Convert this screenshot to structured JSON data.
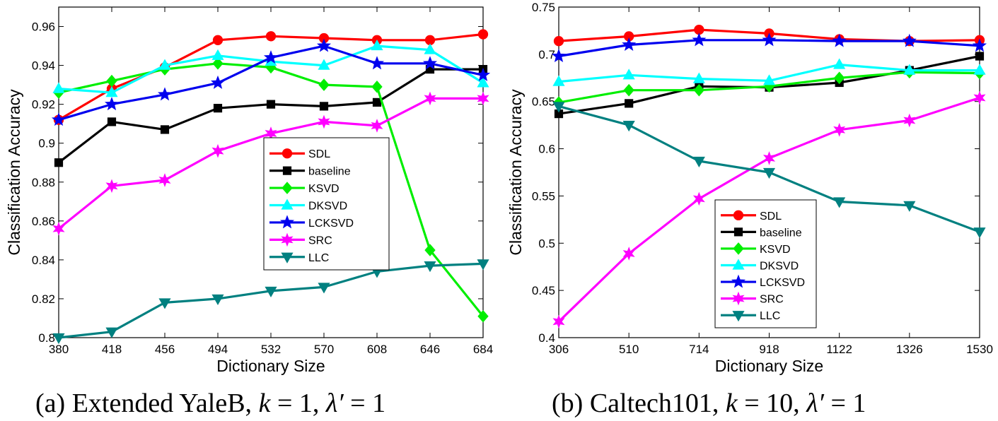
{
  "chart_data": [
    {
      "type": "line",
      "caption": {
        "prefix": "(a)",
        "text": "Extended YaleB,",
        "k_sym": "k",
        "k_val": "= 1,",
        "lam_sym": "λ′",
        "lam_val": "= 1"
      },
      "xlabel": "Dictionary Size",
      "ylabel": "Classification Accuracy",
      "x": [
        380,
        418,
        456,
        494,
        532,
        570,
        608,
        646,
        684
      ],
      "x_tick_labels": [
        "380",
        "418",
        "456",
        "494",
        "532",
        "570",
        "608",
        "646",
        "684"
      ],
      "xlim": [
        380,
        684
      ],
      "ylim": [
        0.8,
        0.97
      ],
      "y_ticks": [
        0.8,
        0.82,
        0.84,
        0.86,
        0.88,
        0.9,
        0.92,
        0.94,
        0.96
      ],
      "y_tick_labels": [
        "0.8",
        "0.82",
        "0.84",
        "0.86",
        "0.88",
        "0.9",
        "0.92",
        "0.94",
        "0.96"
      ],
      "grid": false,
      "legend_position": "center",
      "series": [
        {
          "name": "SDL",
          "color": "#ff0000",
          "marker": "circle",
          "values": [
            0.912,
            0.928,
            0.939,
            0.953,
            0.955,
            0.954,
            0.953,
            0.953,
            0.956
          ]
        },
        {
          "name": "baseline",
          "color": "#000000",
          "marker": "square",
          "values": [
            0.89,
            0.911,
            0.907,
            0.918,
            0.92,
            0.919,
            0.921,
            0.938,
            0.938
          ]
        },
        {
          "name": "KSVD",
          "color": "#00ee00",
          "marker": "diamond",
          "values": [
            0.926,
            0.932,
            0.938,
            0.941,
            0.939,
            0.93,
            0.929,
            0.845,
            0.811
          ]
        },
        {
          "name": "DKSVD",
          "color": "#00ffff",
          "marker": "triangle-up",
          "values": [
            0.928,
            0.926,
            0.94,
            0.945,
            0.942,
            0.94,
            0.95,
            0.948,
            0.931
          ]
        },
        {
          "name": "LCKSVD",
          "color": "#0000ee",
          "marker": "star5",
          "values": [
            0.912,
            0.92,
            0.925,
            0.931,
            0.944,
            0.95,
            0.941,
            0.941,
            0.935
          ]
        },
        {
          "name": "SRC",
          "color": "#ff00ff",
          "marker": "star6",
          "values": [
            0.856,
            0.878,
            0.881,
            0.896,
            0.905,
            0.911,
            0.909,
            0.923,
            0.923
          ]
        },
        {
          "name": "LLC",
          "color": "#008080",
          "marker": "triangle-down",
          "values": [
            0.8,
            0.803,
            0.818,
            0.82,
            0.824,
            0.826,
            0.834,
            0.837,
            0.838
          ]
        }
      ]
    },
    {
      "type": "line",
      "caption": {
        "prefix": "(b)",
        "text": "Caltech101,",
        "k_sym": "k",
        "k_val": "= 10,",
        "lam_sym": "λ′",
        "lam_val": "= 1"
      },
      "xlabel": "Dictionary Size",
      "ylabel": "Classification Accuracy",
      "x": [
        306,
        510,
        714,
        918,
        1122,
        1326,
        1530
      ],
      "x_tick_labels": [
        "306",
        "510",
        "714",
        "918",
        "1122",
        "1326",
        "1530"
      ],
      "xlim": [
        306,
        1530
      ],
      "ylim": [
        0.4,
        0.75
      ],
      "y_ticks": [
        0.4,
        0.45,
        0.5,
        0.55,
        0.6,
        0.65,
        0.7,
        0.75
      ],
      "y_tick_labels": [
        "0.4",
        "0.45",
        "0.5",
        "0.55",
        "0.6",
        "0.65",
        "0.7",
        "0.75"
      ],
      "grid": false,
      "legend_position": "center",
      "series": [
        {
          "name": "SDL",
          "color": "#ff0000",
          "marker": "circle",
          "values": [
            0.714,
            0.719,
            0.726,
            0.722,
            0.716,
            0.714,
            0.715
          ]
        },
        {
          "name": "baseline",
          "color": "#000000",
          "marker": "square",
          "values": [
            0.637,
            0.648,
            0.666,
            0.665,
            0.67,
            0.683,
            0.698
          ]
        },
        {
          "name": "KSVD",
          "color": "#00ee00",
          "marker": "diamond",
          "values": [
            0.649,
            0.662,
            0.662,
            0.666,
            0.675,
            0.681,
            0.68
          ]
        },
        {
          "name": "DKSVD",
          "color": "#00ffff",
          "marker": "triangle-up",
          "values": [
            0.671,
            0.678,
            0.674,
            0.672,
            0.689,
            0.683,
            0.683
          ]
        },
        {
          "name": "LCKSVD",
          "color": "#0000ee",
          "marker": "star5",
          "values": [
            0.698,
            0.71,
            0.715,
            0.715,
            0.714,
            0.714,
            0.709
          ]
        },
        {
          "name": "SRC",
          "color": "#ff00ff",
          "marker": "star6",
          "values": [
            0.417,
            0.489,
            0.547,
            0.59,
            0.62,
            0.63,
            0.654
          ]
        },
        {
          "name": "LLC",
          "color": "#008080",
          "marker": "triangle-down",
          "values": [
            0.645,
            0.625,
            0.587,
            0.575,
            0.544,
            0.54,
            0.512
          ]
        }
      ]
    }
  ]
}
